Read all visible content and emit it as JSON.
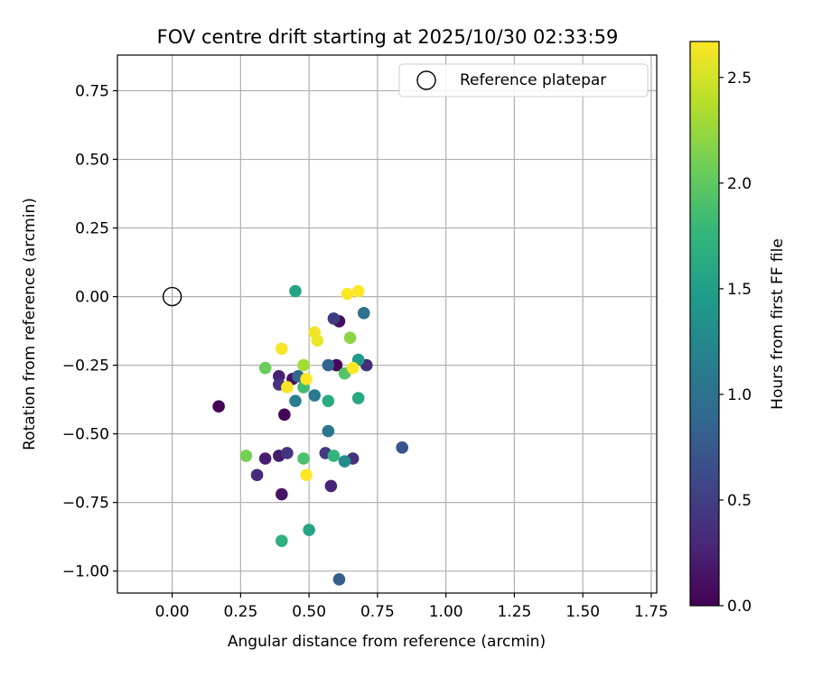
{
  "chart_data": {
    "type": "scatter",
    "title": "FOV centre drift starting at 2025/10/30 02:33:59",
    "xlabel": "Angular distance from reference (arcmin)",
    "ylabel": "Rotation from reference (arcmin)",
    "xlim": [
      -0.2,
      1.77
    ],
    "ylim": [
      -1.08,
      0.88
    ],
    "xticks": [
      0.0,
      0.25,
      0.5,
      0.75,
      1.0,
      1.25,
      1.5,
      1.75
    ],
    "xtick_labels": [
      "0.00",
      "0.25",
      "0.50",
      "0.75",
      "1.00",
      "1.25",
      "1.50",
      "1.75"
    ],
    "yticks": [
      0.75,
      0.5,
      0.25,
      0.0,
      -0.25,
      -0.5,
      -0.75,
      -1.0
    ],
    "ytick_labels": [
      "0.75",
      "0.50",
      "0.25",
      "0.00",
      "−0.25",
      "−0.50",
      "−0.75",
      "−1.00"
    ],
    "grid": true,
    "legend": {
      "position": "top-right",
      "entries": [
        "Reference platepar"
      ]
    },
    "reference_point": {
      "x": 0.0,
      "y": 0.0,
      "label": "Reference platepar"
    },
    "colorbar": {
      "label": "Hours from first FF file",
      "range": [
        0.0,
        2.67
      ],
      "colormap": "viridis",
      "ticks": [
        0.0,
        0.5,
        1.0,
        1.5,
        2.0,
        2.5
      ],
      "tick_labels": [
        "0.0",
        "0.5",
        "1.0",
        "1.5",
        "2.0",
        "2.5"
      ]
    },
    "colormap_stops": [
      "#440154",
      "#482878",
      "#3e4989",
      "#31688e",
      "#26828e",
      "#1f9e89",
      "#35b779",
      "#6ece58",
      "#b5de2b",
      "#fde725"
    ],
    "points": [
      {
        "x": 0.17,
        "y": -0.4,
        "hours": 0.0
      },
      {
        "x": 0.41,
        "y": -0.43,
        "hours": 0.02
      },
      {
        "x": 0.6,
        "y": -0.25,
        "hours": 0.05
      },
      {
        "x": 0.61,
        "y": -0.09,
        "hours": 0.1
      },
      {
        "x": 0.44,
        "y": -0.3,
        "hours": 0.12
      },
      {
        "x": 0.4,
        "y": -0.72,
        "hours": 0.15
      },
      {
        "x": 0.39,
        "y": -0.58,
        "hours": 0.2
      },
      {
        "x": 0.34,
        "y": -0.59,
        "hours": 0.22
      },
      {
        "x": 0.39,
        "y": -0.29,
        "hours": 0.25
      },
      {
        "x": 0.58,
        "y": -0.69,
        "hours": 0.28
      },
      {
        "x": 0.31,
        "y": -0.65,
        "hours": 0.32
      },
      {
        "x": 0.71,
        "y": -0.25,
        "hours": 0.35
      },
      {
        "x": 0.66,
        "y": -0.59,
        "hours": 0.38
      },
      {
        "x": 0.39,
        "y": -0.32,
        "hours": 0.4
      },
      {
        "x": 0.42,
        "y": -0.57,
        "hours": 0.42
      },
      {
        "x": 0.56,
        "y": -0.57,
        "hours": 0.45
      },
      {
        "x": 0.59,
        "y": -0.08,
        "hours": 0.48
      },
      {
        "x": 0.84,
        "y": -0.55,
        "hours": 0.7
      },
      {
        "x": 0.61,
        "y": -1.03,
        "hours": 0.8
      },
      {
        "x": 0.57,
        "y": -0.25,
        "hours": 0.85
      },
      {
        "x": 0.46,
        "y": -0.29,
        "hours": 0.9
      },
      {
        "x": 0.7,
        "y": -0.06,
        "hours": 1.0
      },
      {
        "x": 0.57,
        "y": -0.49,
        "hours": 1.05
      },
      {
        "x": 0.52,
        "y": -0.36,
        "hours": 1.1
      },
      {
        "x": 0.45,
        "y": -0.38,
        "hours": 1.15
      },
      {
        "x": 0.63,
        "y": -0.6,
        "hours": 1.3
      },
      {
        "x": 0.68,
        "y": -0.23,
        "hours": 1.45
      },
      {
        "x": 0.45,
        "y": 0.02,
        "hours": 1.55
      },
      {
        "x": 0.5,
        "y": -0.85,
        "hours": 1.55
      },
      {
        "x": 0.68,
        "y": -0.37,
        "hours": 1.6
      },
      {
        "x": 0.57,
        "y": -0.38,
        "hours": 1.65
      },
      {
        "x": 0.4,
        "y": -0.89,
        "hours": 1.7
      },
      {
        "x": 0.59,
        "y": -0.58,
        "hours": 1.75
      },
      {
        "x": 0.48,
        "y": -0.33,
        "hours": 1.85
      },
      {
        "x": 0.48,
        "y": -0.59,
        "hours": 1.9
      },
      {
        "x": 0.63,
        "y": -0.28,
        "hours": 1.95
      },
      {
        "x": 0.34,
        "y": -0.26,
        "hours": 2.05
      },
      {
        "x": 0.27,
        "y": -0.58,
        "hours": 2.1
      },
      {
        "x": 0.65,
        "y": -0.15,
        "hours": 2.2
      },
      {
        "x": 0.48,
        "y": -0.25,
        "hours": 2.3
      },
      {
        "x": 0.53,
        "y": -0.16,
        "hours": 2.6
      },
      {
        "x": 0.52,
        "y": -0.13,
        "hours": 2.62
      },
      {
        "x": 0.4,
        "y": -0.19,
        "hours": 2.64
      },
      {
        "x": 0.42,
        "y": -0.33,
        "hours": 2.65
      },
      {
        "x": 0.49,
        "y": -0.3,
        "hours": 2.66
      },
      {
        "x": 0.49,
        "y": -0.65,
        "hours": 2.67
      },
      {
        "x": 0.64,
        "y": 0.01,
        "hours": 2.67
      },
      {
        "x": 0.68,
        "y": 0.02,
        "hours": 2.67
      },
      {
        "x": 0.66,
        "y": -0.26,
        "hours": 2.66
      }
    ]
  }
}
